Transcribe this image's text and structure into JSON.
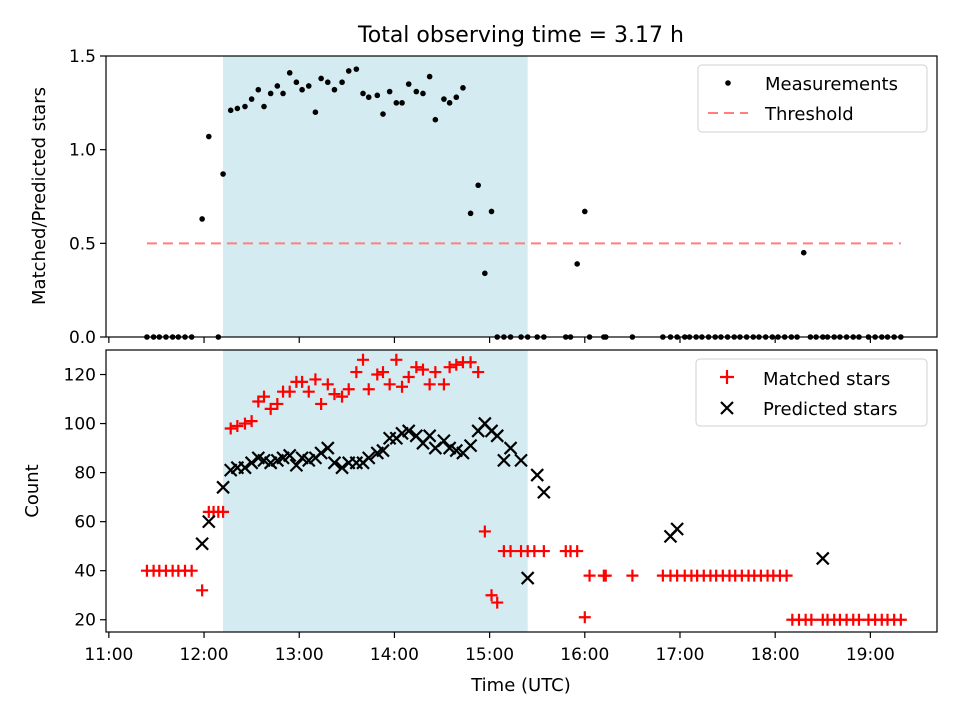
{
  "figure": {
    "title": "Total observing time = 3.17 h"
  },
  "chart_data": [
    {
      "type": "scatter",
      "ylabel": "Matched/Predicted stars",
      "xlabel": "",
      "xlim": [
        10.97,
        19.7
      ],
      "ylim": [
        0,
        1.5
      ],
      "yticks": [
        0,
        0.5,
        1.0,
        1.5
      ],
      "ytick_labels": [
        "0.0",
        "0.5",
        "1.0",
        "1.5"
      ],
      "shaded_span": [
        12.2,
        15.4
      ],
      "shaded_color": "#d3ebf1",
      "legend_position": "top-right",
      "legend": [
        "Measurements",
        "Threshold"
      ],
      "series": [
        {
          "name": "Measurements",
          "marker": "dot",
          "color": "#000000",
          "x": [
            11.4,
            11.47,
            11.53,
            11.6,
            11.67,
            11.73,
            11.8,
            11.87,
            11.98,
            12.05,
            12.15,
            12.2,
            12.28,
            12.35,
            12.43,
            12.5,
            12.57,
            12.63,
            12.7,
            12.77,
            12.83,
            12.9,
            12.97,
            13.03,
            13.1,
            13.17,
            13.23,
            13.3,
            13.37,
            13.45,
            13.52,
            13.6,
            13.67,
            13.73,
            13.82,
            13.88,
            13.95,
            14.02,
            14.08,
            14.15,
            14.23,
            14.3,
            14.37,
            14.43,
            14.52,
            14.58,
            14.65,
            14.72,
            14.8,
            14.88,
            14.95,
            15.02,
            15.08,
            15.15,
            15.22,
            15.33,
            15.4,
            15.5,
            15.57,
            15.8,
            15.85,
            15.92,
            16.0,
            16.05,
            16.2,
            16.22,
            16.5,
            16.82,
            16.9,
            16.97,
            17.05,
            17.1,
            17.17,
            17.23,
            17.3,
            17.37,
            17.43,
            17.5,
            17.57,
            17.63,
            17.7,
            17.77,
            17.83,
            17.9,
            17.97,
            18.03,
            18.1,
            18.17,
            18.23,
            18.3,
            18.37,
            18.43,
            18.5,
            18.55,
            18.62,
            18.68,
            18.75,
            18.82,
            18.88,
            18.98,
            19.05,
            19.12,
            19.18,
            19.25,
            19.32
          ],
          "y": [
            0,
            0,
            0,
            0,
            0,
            0,
            0,
            0,
            0.63,
            1.07,
            0,
            0.87,
            1.21,
            1.22,
            1.23,
            1.27,
            1.32,
            1.23,
            1.3,
            1.34,
            1.3,
            1.41,
            1.36,
            1.32,
            1.34,
            1.2,
            1.38,
            1.36,
            1.32,
            1.36,
            1.42,
            1.43,
            1.3,
            1.28,
            1.29,
            1.19,
            1.31,
            1.25,
            1.25,
            1.35,
            1.31,
            1.3,
            1.39,
            1.16,
            1.27,
            1.25,
            1.28,
            1.33,
            0.66,
            0.81,
            0.34,
            0.67,
            0,
            0,
            0,
            0,
            0,
            0,
            0,
            0,
            0,
            0.39,
            0.67,
            0,
            0,
            0,
            0,
            0,
            0,
            0,
            0,
            0,
            0,
            0,
            0,
            0,
            0,
            0,
            0,
            0,
            0,
            0,
            0,
            0,
            0,
            0,
            0,
            0,
            0,
            0.45,
            0,
            0,
            0,
            0,
            0,
            0,
            0,
            0,
            0,
            0,
            0,
            0,
            0,
            0,
            0
          ]
        },
        {
          "name": "Threshold",
          "marker": "dashed-line",
          "color": "#ff7f7f",
          "x": [
            11.4,
            19.32
          ],
          "y": [
            0.5,
            0.5
          ]
        }
      ]
    },
    {
      "type": "scatter",
      "ylabel": "Count",
      "xlabel": "Time (UTC)",
      "xlim": [
        10.97,
        19.7
      ],
      "ylim": [
        15,
        130
      ],
      "yticks": [
        20,
        40,
        60,
        80,
        100,
        120
      ],
      "xticks": [
        11,
        12,
        13,
        14,
        15,
        16,
        17,
        18,
        19
      ],
      "xtick_labels": [
        "11:00",
        "12:00",
        "13:00",
        "14:00",
        "15:00",
        "16:00",
        "17:00",
        "18:00",
        "19:00"
      ],
      "shaded_span": [
        12.2,
        15.4
      ],
      "shaded_color": "#d3ebf1",
      "legend_position": "top-right",
      "legend": [
        "Matched stars",
        "Predicted stars"
      ],
      "series": [
        {
          "name": "Matched stars",
          "marker": "plus",
          "color": "#ff0000",
          "x": [
            11.4,
            11.47,
            11.53,
            11.6,
            11.67,
            11.73,
            11.8,
            11.87,
            11.98,
            12.05,
            12.1,
            12.15,
            12.2,
            12.28,
            12.35,
            12.43,
            12.5,
            12.57,
            12.63,
            12.7,
            12.77,
            12.83,
            12.9,
            12.97,
            13.03,
            13.1,
            13.17,
            13.23,
            13.3,
            13.37,
            13.45,
            13.52,
            13.6,
            13.67,
            13.73,
            13.82,
            13.88,
            13.95,
            14.02,
            14.08,
            14.15,
            14.23,
            14.3,
            14.37,
            14.43,
            14.52,
            14.58,
            14.65,
            14.72,
            14.8,
            14.88,
            14.95,
            15.02,
            15.08,
            15.15,
            15.22,
            15.33,
            15.4,
            15.47,
            15.57,
            15.8,
            15.85,
            15.92,
            16.0,
            16.05,
            16.2,
            16.22,
            16.5,
            16.82,
            16.9,
            16.97,
            17.05,
            17.12,
            17.18,
            17.25,
            17.32,
            17.38,
            17.45,
            17.52,
            17.58,
            17.65,
            17.72,
            17.78,
            17.85,
            17.92,
            17.98,
            18.05,
            18.12,
            18.18,
            18.25,
            18.32,
            18.38,
            18.5,
            18.55,
            18.62,
            18.68,
            18.75,
            18.82,
            18.88,
            18.98,
            19.05,
            19.12,
            19.18,
            19.25,
            19.32
          ],
          "y": [
            40,
            40,
            40,
            40,
            40,
            40,
            40,
            40,
            32,
            64,
            64,
            64,
            64,
            98,
            99,
            100,
            101,
            109,
            111,
            106,
            108,
            113,
            113,
            117,
            117,
            113,
            118,
            108,
            116,
            112,
            111,
            114,
            121,
            126,
            114,
            120,
            121,
            116,
            126,
            115,
            119,
            123,
            122,
            116,
            121,
            116,
            123,
            124,
            125,
            125,
            121,
            56,
            30,
            27,
            48,
            48,
            48,
            48,
            48,
            48,
            48,
            48,
            48,
            21,
            38,
            38,
            38,
            38,
            38,
            38,
            38,
            38,
            38,
            38,
            38,
            38,
            38,
            38,
            38,
            38,
            38,
            38,
            38,
            38,
            38,
            38,
            38,
            38,
            20,
            20,
            20,
            20,
            20,
            20,
            20,
            20,
            20,
            20,
            20,
            20,
            20,
            20,
            20,
            20,
            20
          ],
          "y_note_skip": []
        },
        {
          "name": "Predicted stars",
          "marker": "x",
          "color": "#000000",
          "x": [
            11.98,
            12.05,
            12.2,
            12.28,
            12.35,
            12.43,
            12.5,
            12.57,
            12.63,
            12.7,
            12.77,
            12.83,
            12.9,
            12.97,
            13.03,
            13.1,
            13.17,
            13.23,
            13.3,
            13.37,
            13.45,
            13.52,
            13.6,
            13.67,
            13.73,
            13.82,
            13.88,
            13.95,
            14.02,
            14.08,
            14.15,
            14.23,
            14.3,
            14.37,
            14.43,
            14.52,
            14.58,
            14.65,
            14.72,
            14.8,
            14.88,
            14.95,
            15.02,
            15.08,
            15.15,
            15.22,
            15.33,
            15.4,
            15.5,
            15.57,
            16.9,
            16.97,
            18.5
          ],
          "y": [
            51,
            60,
            74,
            81,
            82,
            82,
            84,
            86,
            85,
            84,
            85,
            86,
            87,
            83,
            86,
            85,
            86,
            88,
            90,
            84,
            82,
            84,
            84,
            84,
            86,
            88,
            89,
            94,
            94,
            96,
            97,
            95,
            92,
            95,
            90,
            93,
            90,
            89,
            88,
            91,
            97,
            100,
            97,
            95,
            85,
            90,
            85,
            37,
            79,
            72,
            54,
            57,
            45
          ]
        }
      ]
    }
  ]
}
